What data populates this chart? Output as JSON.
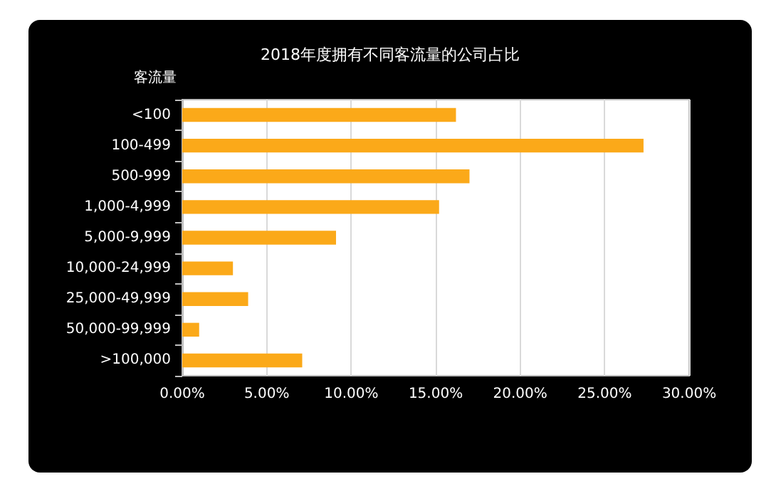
{
  "chart_data": {
    "type": "bar",
    "orientation": "horizontal",
    "title": "2018年度拥有不同客流量的公司占比",
    "ylabel": "客流量",
    "categories": [
      "<100",
      "100-499",
      "500-999",
      "1,000-4,999",
      "5,000-9,999",
      "10,000-24,999",
      "25,000-49,999",
      "50,000-99,999",
      ">100,000"
    ],
    "values": [
      16.2,
      27.3,
      17.0,
      15.2,
      9.1,
      3.0,
      3.9,
      1.0,
      7.1
    ],
    "color": "#fba919",
    "xlim": [
      0,
      30
    ],
    "xticks": [
      {
        "value": 0,
        "label": "0.00%"
      },
      {
        "value": 5,
        "label": "5.00%"
      },
      {
        "value": 10,
        "label": "10.00%"
      },
      {
        "value": 15,
        "label": "15.00%"
      },
      {
        "value": 20,
        "label": "20.00%"
      },
      {
        "value": 25,
        "label": "25.00%"
      },
      {
        "value": 30,
        "label": "30.00%"
      }
    ],
    "grid": "x"
  }
}
